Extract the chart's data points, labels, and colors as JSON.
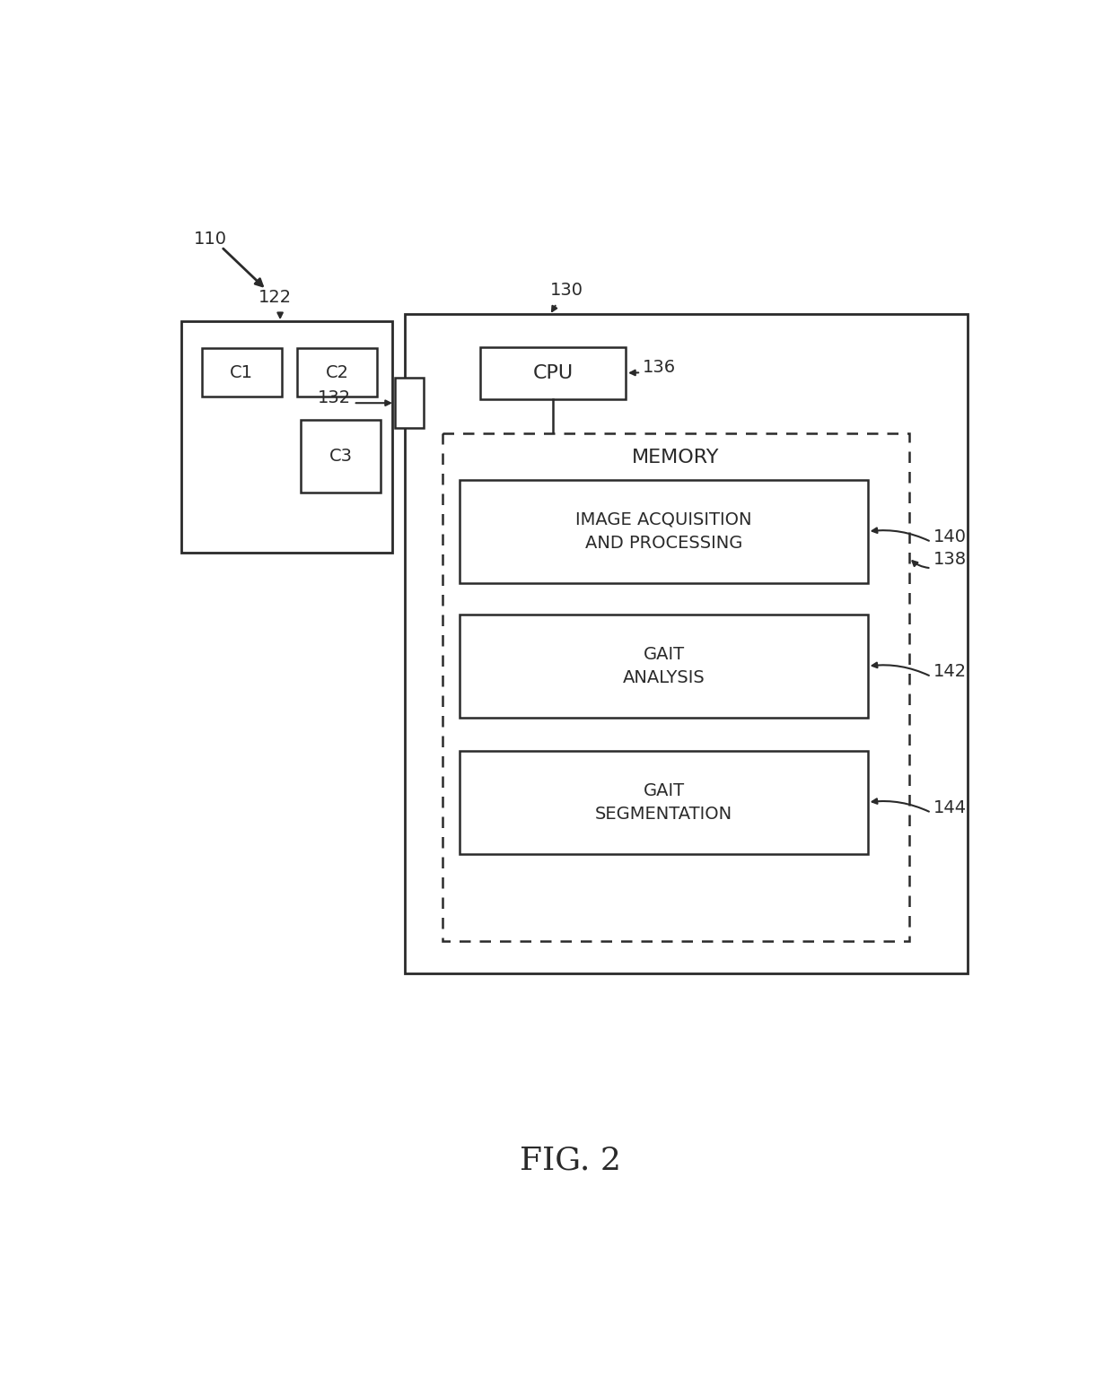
{
  "bg_color": "#ffffff",
  "line_color": "#2a2a2a",
  "fig_caption": "FIG. 2",
  "label_110": "110",
  "label_122": "122",
  "label_130": "130",
  "label_132": "132",
  "label_136": "136",
  "label_138": "138",
  "label_140": "140",
  "label_142": "142",
  "label_144": "144",
  "text_cpu": "CPU",
  "text_memory": "MEMORY",
  "text_img_acq": "IMAGE ACQUISITION\nAND PROCESSING",
  "text_gait_analysis": "GAIT\nANALYSIS",
  "text_gait_seg": "GAIT\nSEGMENTATION",
  "text_c1": "C1",
  "text_c2": "C2",
  "text_c3": "C3",
  "font_size_labels": 14,
  "font_size_box_text": 14,
  "font_size_box_text_lg": 16,
  "font_size_caption": 26
}
